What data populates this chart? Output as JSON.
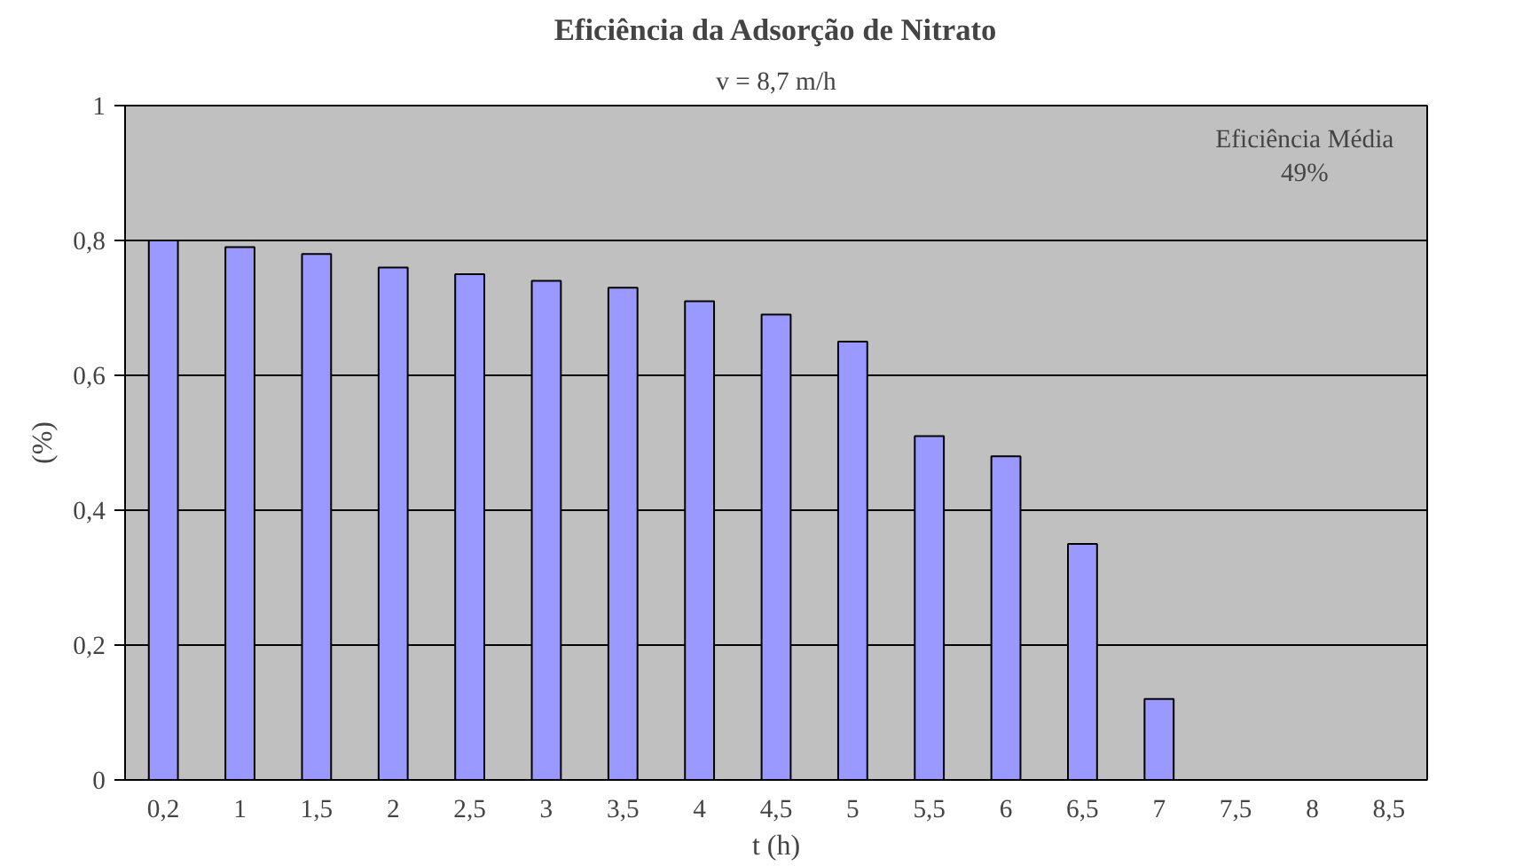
{
  "chart_data": {
    "type": "bar",
    "title": "Eficiência da Adsorção de Nitrato",
    "subtitle": "v = 8,7 m/h",
    "xlabel": "t (h)",
    "ylabel": "(%)",
    "categories": [
      "0,2",
      "1",
      "1,5",
      "2",
      "2,5",
      "3",
      "3,5",
      "4",
      "4,5",
      "5",
      "5,5",
      "6",
      "6,5",
      "7",
      "7,5",
      "8",
      "8,5"
    ],
    "values": [
      0.8,
      0.79,
      0.78,
      0.76,
      0.75,
      0.74,
      0.73,
      0.71,
      0.69,
      0.65,
      0.51,
      0.48,
      0.35,
      0.12,
      null,
      null,
      null
    ],
    "color": "#9999ff",
    "ylim": [
      0,
      1
    ],
    "yticks": [
      0,
      {
        "value": 0.2,
        "label": "0,2"
      },
      {
        "value": 0.4,
        "label": "0,4"
      },
      {
        "value": 0.6,
        "label": "0,6"
      },
      {
        "value": 0.8,
        "label": "0,8"
      },
      1
    ],
    "grid": "y",
    "annotations": [
      "Eficiência Média\n49%"
    ]
  }
}
